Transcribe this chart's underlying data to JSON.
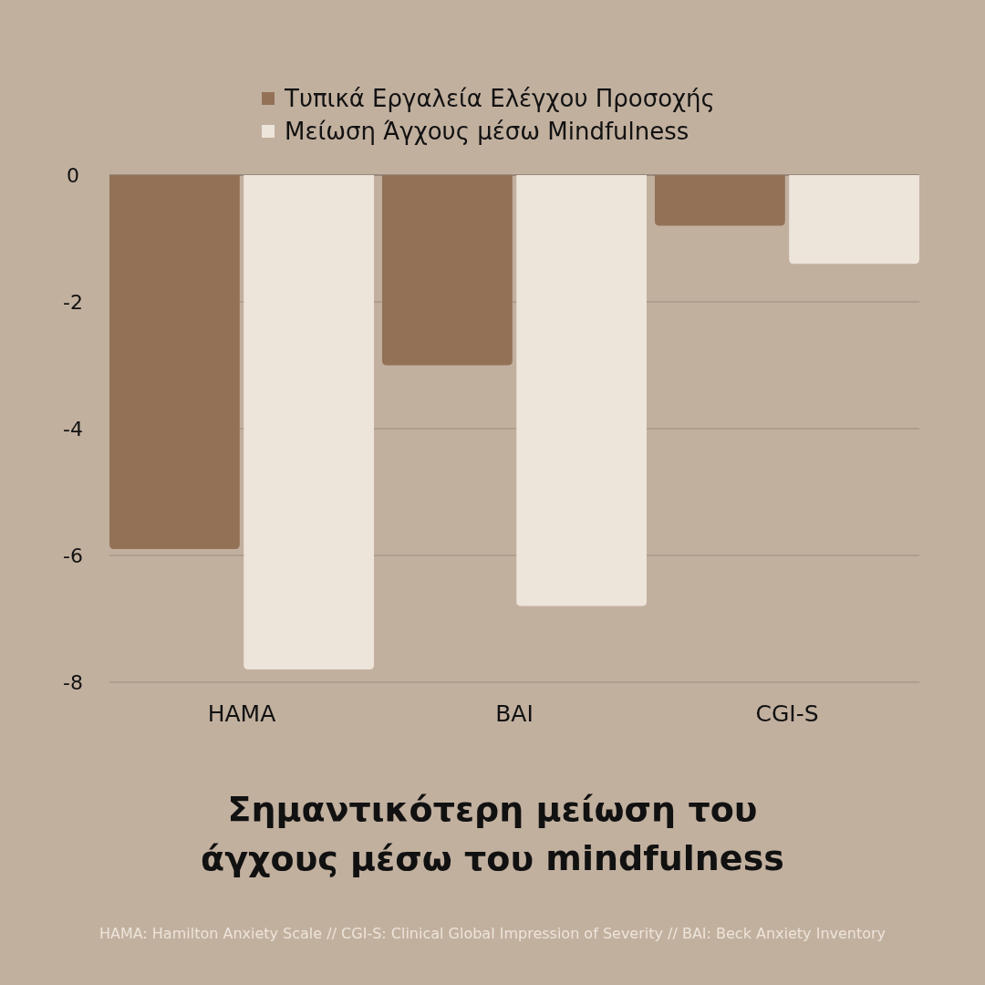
{
  "chart_data": {
    "type": "bar",
    "title": "Σημαντικότερη μείωση του άγχους μέσω του mindfulness",
    "categories": [
      "HAMA",
      "BAI",
      "CGI-S"
    ],
    "series": [
      {
        "name": "Τυπικά Εργαλεία Ελέγχου Προσοχής",
        "color": "#937157",
        "values": [
          -5.9,
          -3.0,
          -0.8
        ]
      },
      {
        "name": "Μείωση Άγχους μέσω Mindfulness",
        "color": "#ede4da",
        "values": [
          -7.8,
          -6.8,
          -1.4
        ]
      }
    ],
    "ylim": [
      -8,
      0
    ],
    "yticks": [
      0,
      -2,
      -4,
      -6,
      -8
    ],
    "grid": "y",
    "legend": "top",
    "annotations": [
      "HAMA: Hamilton Anxiety Scale // CGI-S: Clinical Global Impression of Severity // BAI: Beck Anxiety Inventory"
    ]
  }
}
